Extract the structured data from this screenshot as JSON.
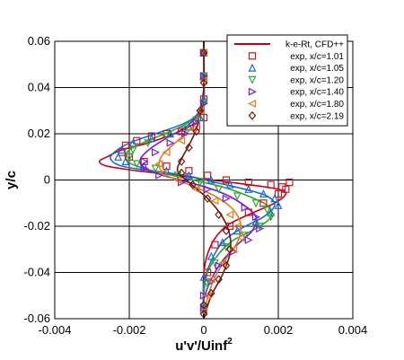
{
  "chart_data": {
    "type": "scatter",
    "title": "",
    "xlabel": "u'v'/Uinf",
    "xlabel_sup": "2",
    "ylabel": "y/c",
    "xlim": [
      -0.004,
      0.004
    ],
    "ylim": [
      -0.06,
      0.06
    ],
    "x_ticks": [
      -0.004,
      -0.002,
      0,
      0.002,
      0.004
    ],
    "x_tick_labels": [
      "-0.004",
      "-0.002",
      "0",
      "0.002",
      "0.004"
    ],
    "y_ticks": [
      -0.06,
      -0.04,
      -0.02,
      0,
      0.02,
      0.04,
      0.06
    ],
    "y_tick_labels": [
      "-0.06",
      "-0.04",
      "-0.02",
      "0",
      "0.02",
      "0.04",
      "0.06"
    ],
    "grid": true,
    "legend_position": "top-right",
    "lines": [
      {
        "name": "k-e-Rt, CFD++",
        "color": "#c0001a",
        "x": [
          0.0,
          0.0,
          0.0,
          -0.0001,
          -0.0003,
          -0.0008,
          -0.0015,
          -0.0022,
          -0.0026,
          -0.0028,
          -0.0026,
          -0.0018,
          -0.0007,
          0.0002,
          0.0012,
          0.002,
          0.0022,
          0.0019,
          0.0012,
          0.0006,
          0.0002,
          0.0,
          0.0
        ],
        "y": [
          0.06,
          0.045,
          0.035,
          0.028,
          0.024,
          0.02,
          0.016,
          0.013,
          0.01,
          0.008,
          0.006,
          0.004,
          0.002,
          0.0,
          -0.002,
          -0.004,
          -0.006,
          -0.01,
          -0.015,
          -0.02,
          -0.028,
          -0.04,
          -0.06
        ]
      },
      {
        "name": "",
        "color": "#1a6ad6",
        "x": [
          0.0,
          0.0,
          0.0,
          -0.0002,
          -0.0006,
          -0.0013,
          -0.002,
          -0.0024,
          -0.0025,
          -0.0022,
          -0.0014,
          -0.0005,
          0.0003,
          0.0011,
          0.0017,
          0.0019,
          0.0016,
          0.001,
          0.0005,
          0.0002,
          0.0,
          0.0
        ],
        "y": [
          0.06,
          0.045,
          0.035,
          0.028,
          0.024,
          0.02,
          0.016,
          0.012,
          0.009,
          0.006,
          0.004,
          0.002,
          -0.001,
          -0.004,
          -0.007,
          -0.011,
          -0.016,
          -0.021,
          -0.027,
          -0.035,
          -0.045,
          -0.06
        ]
      },
      {
        "name": "",
        "color": "#2ea82e",
        "x": [
          0.0,
          0.0,
          -0.0001,
          -0.0004,
          -0.0009,
          -0.0015,
          -0.002,
          -0.0021,
          -0.0018,
          -0.0011,
          -0.0003,
          0.0005,
          0.0012,
          0.0017,
          0.0018,
          0.0014,
          0.0008,
          0.0004,
          0.0001,
          0.0,
          0.0
        ],
        "y": [
          0.06,
          0.04,
          0.03,
          0.025,
          0.021,
          0.017,
          0.013,
          0.009,
          0.006,
          0.003,
          0.0,
          -0.003,
          -0.007,
          -0.011,
          -0.016,
          -0.021,
          -0.026,
          -0.032,
          -0.04,
          -0.05,
          -0.06
        ]
      },
      {
        "name": "",
        "color": "#7a1ad6",
        "x": [
          0.0,
          0.0,
          -0.0001,
          -0.0004,
          -0.0009,
          -0.0014,
          -0.0017,
          -0.0016,
          -0.0011,
          -0.0004,
          0.0004,
          0.001,
          0.0014,
          0.0013,
          0.0009,
          0.0005,
          0.0002,
          0.0,
          0.0
        ],
        "y": [
          0.06,
          0.04,
          0.03,
          0.024,
          0.019,
          0.014,
          0.009,
          0.005,
          0.002,
          -0.001,
          -0.005,
          -0.01,
          -0.016,
          -0.022,
          -0.028,
          -0.035,
          -0.043,
          -0.052,
          -0.06
        ]
      },
      {
        "name": "",
        "color": "#e07b1a",
        "x": [
          0.0,
          0.0,
          -0.0001,
          -0.0003,
          -0.0007,
          -0.0011,
          -0.0012,
          -0.001,
          -0.0004,
          0.0003,
          0.0008,
          0.001,
          0.0009,
          0.0006,
          0.0003,
          0.0001,
          0.0
        ],
        "y": [
          0.06,
          0.04,
          0.03,
          0.023,
          0.017,
          0.011,
          0.006,
          0.002,
          -0.002,
          -0.007,
          -0.013,
          -0.02,
          -0.027,
          -0.034,
          -0.042,
          -0.051,
          -0.06
        ]
      },
      {
        "name": "",
        "color": "#6b1a0a",
        "x": [
          0.0,
          0.0,
          -0.0001,
          -0.0002,
          -0.0004,
          -0.0006,
          -0.0007,
          -0.0004,
          0.0001,
          0.0005,
          0.0007,
          0.0007,
          0.0005,
          0.0002,
          0.0
        ],
        "y": [
          0.06,
          0.04,
          0.03,
          0.022,
          0.015,
          0.009,
          0.004,
          -0.001,
          -0.008,
          -0.016,
          -0.024,
          -0.032,
          -0.041,
          -0.05,
          -0.06
        ]
      }
    ],
    "series": [
      {
        "name": "exp, x/c=1.01",
        "color": "#d4141e",
        "marker": "square",
        "x": [
          0.0,
          0.0,
          0.0,
          0.0,
          -0.0002,
          -0.0006,
          -0.001,
          -0.0014,
          -0.0018,
          -0.0021,
          -0.0022,
          -0.002,
          -0.0016,
          -0.001,
          -0.0004,
          0.0001,
          0.0006,
          0.0012,
          0.0018,
          0.0021,
          0.0022,
          0.0023,
          0.002,
          0.0016,
          0.0012,
          0.0007,
          0.0003,
          0.0001,
          0.0
        ],
        "y": [
          0.055,
          0.045,
          0.035,
          0.027,
          0.023,
          0.021,
          0.02,
          0.019,
          0.017,
          0.015,
          0.012,
          0.01,
          0.008,
          0.006,
          0.004,
          0.002,
          0.0,
          -0.001,
          -0.002,
          -0.003,
          -0.004,
          -0.001,
          -0.006,
          -0.01,
          -0.014,
          -0.02,
          -0.028,
          -0.04,
          -0.055
        ]
      },
      {
        "name": "exp, x/c=1.05",
        "color": "#1a6ad6",
        "marker": "triangle-up",
        "x": [
          0.0,
          0.0,
          0.0,
          -0.0001,
          -0.0004,
          -0.0009,
          -0.0014,
          -0.0019,
          -0.0022,
          -0.0023,
          -0.0021,
          -0.0016,
          -0.001,
          -0.0004,
          0.0002,
          0.0007,
          0.0012,
          0.0016,
          0.0019,
          0.002,
          0.0018,
          0.0014,
          0.0009,
          0.0005,
          0.0002,
          0.0,
          0.0
        ],
        "y": [
          0.055,
          0.045,
          0.035,
          0.027,
          0.023,
          0.02,
          0.018,
          0.016,
          0.013,
          0.01,
          0.008,
          0.006,
          0.004,
          0.002,
          0.0,
          -0.002,
          -0.004,
          -0.006,
          -0.008,
          -0.011,
          -0.014,
          -0.018,
          -0.022,
          -0.027,
          -0.033,
          -0.042,
          -0.055
        ]
      },
      {
        "name": "exp, x/c=1.20",
        "color": "#2ea82e",
        "marker": "triangle-down",
        "x": [
          0.0,
          0.0,
          0.0,
          -0.0002,
          -0.0005,
          -0.001,
          -0.0015,
          -0.0019,
          -0.002,
          -0.0018,
          -0.0013,
          -0.0007,
          -0.0001,
          0.0004,
          0.0009,
          0.0014,
          0.0017,
          0.0018,
          0.0015,
          0.0011,
          0.0006,
          0.0003,
          0.0001,
          0.0
        ],
        "y": [
          0.055,
          0.045,
          0.033,
          0.026,
          0.022,
          0.019,
          0.016,
          0.013,
          0.01,
          0.007,
          0.005,
          0.002,
          -0.001,
          -0.004,
          -0.007,
          -0.01,
          -0.013,
          -0.016,
          -0.02,
          -0.024,
          -0.029,
          -0.036,
          -0.045,
          -0.055
        ]
      },
      {
        "name": "exp, x/c=1.40",
        "color": "#7a1ad6",
        "marker": "triangle-right",
        "x": [
          0.0,
          0.0,
          0.0,
          -0.0002,
          -0.0005,
          -0.0009,
          -0.0013,
          -0.0016,
          -0.0016,
          -0.0012,
          -0.0006,
          0.0001,
          0.0006,
          0.0011,
          0.0014,
          0.0015,
          0.0012,
          0.0008,
          0.0004,
          0.0002,
          0.0,
          0.0
        ],
        "y": [
          0.055,
          0.045,
          0.033,
          0.025,
          0.02,
          0.016,
          0.012,
          0.008,
          0.005,
          0.002,
          -0.001,
          -0.004,
          -0.008,
          -0.012,
          -0.016,
          -0.021,
          -0.026,
          -0.031,
          -0.037,
          -0.044,
          -0.05,
          -0.056
        ]
      },
      {
        "name": "exp, x/c=1.80",
        "color": "#e07b1a",
        "marker": "triangle-left",
        "x": [
          0.0,
          0.0,
          -0.0001,
          -0.0003,
          -0.0006,
          -0.001,
          -0.0012,
          -0.0011,
          -0.0007,
          -0.0002,
          0.0003,
          0.0007,
          0.0009,
          0.001,
          0.0008,
          0.0005,
          0.0002,
          0.0001,
          0.0
        ],
        "y": [
          0.055,
          0.043,
          0.03,
          0.022,
          0.017,
          0.012,
          0.007,
          0.003,
          0.0,
          -0.004,
          -0.009,
          -0.015,
          -0.02,
          -0.025,
          -0.03,
          -0.036,
          -0.043,
          -0.05,
          -0.057
        ]
      },
      {
        "name": "exp, x/c=2.19",
        "color": "#6b1a0a",
        "marker": "diamond",
        "x": [
          0.0,
          0.0,
          -0.0001,
          -0.0002,
          -0.0004,
          -0.0006,
          -0.0006,
          -0.0003,
          0.0001,
          0.0004,
          0.0006,
          0.0007,
          0.0006,
          0.0004,
          0.0002,
          0.0,
          0.0
        ],
        "y": [
          0.055,
          0.042,
          0.03,
          0.021,
          0.014,
          0.008,
          0.003,
          -0.002,
          -0.008,
          -0.015,
          -0.022,
          -0.03,
          -0.037,
          -0.043,
          -0.049,
          -0.054,
          -0.058
        ]
      }
    ]
  }
}
